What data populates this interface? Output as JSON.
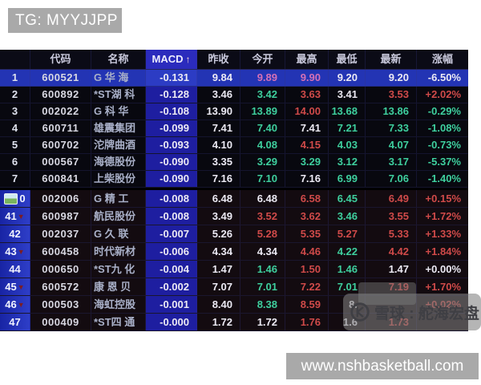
{
  "top_banner": {
    "label": "TG: MYYJJPP"
  },
  "bottom_banner": {
    "label": "www.nshbasketball.com"
  },
  "watermark": {
    "text": "雪球 : 舵海宏盘",
    "logo_icon": "xueqiu-snowball-logo"
  },
  "icons": {
    "sort_arrow": "↑",
    "down_arrow": "▼"
  },
  "colors": {
    "up_red": "#cf4a49",
    "down_green": "#3ecf9e",
    "neutral_white": "#eceaf4",
    "highlight_pink": "#d570b6",
    "row_highlight_blue": "#2334b4",
    "macd_column_blue": "#1e1ea0",
    "banner_gray": "#a9a9a9",
    "table_bg": "#08080f"
  },
  "table": {
    "columns": [
      "代码",
      "名称",
      "MACD",
      "昨收",
      "今开",
      "最高",
      "最低",
      "最新",
      "涨幅"
    ],
    "sorted_column": "MACD",
    "rows": [
      {
        "num": "1",
        "code": "600521",
        "name": "G 华 海",
        "vals": [
          "-0.131",
          "9.84",
          "9.89",
          "9.90",
          "9.20",
          "9.20",
          "-6.50%"
        ],
        "cols": [
          "w",
          "w",
          "p",
          "p",
          "w",
          "w",
          "w"
        ],
        "highlight": true,
        "section": "top",
        "arrow": false,
        "img_icon": false
      },
      {
        "num": "2",
        "code": "600892",
        "name": "*ST湖 科",
        "vals": [
          "-0.128",
          "3.46",
          "3.42",
          "3.63",
          "3.41",
          "3.53",
          "+2.02%"
        ],
        "cols": [
          "w",
          "w",
          "g",
          "r",
          "w",
          "r",
          "r"
        ],
        "highlight": false,
        "section": "top",
        "arrow": false,
        "img_icon": false
      },
      {
        "num": "3",
        "code": "002022",
        "name": "G 科 华",
        "vals": [
          "-0.108",
          "13.90",
          "13.89",
          "14.00",
          "13.68",
          "13.86",
          "-0.29%"
        ],
        "cols": [
          "w",
          "w",
          "g",
          "r",
          "g",
          "g",
          "g"
        ],
        "highlight": false,
        "section": "top",
        "arrow": false,
        "img_icon": false
      },
      {
        "num": "4",
        "code": "600711",
        "name": "雄震集团",
        "vals": [
          "-0.099",
          "7.41",
          "7.40",
          "7.41",
          "7.21",
          "7.33",
          "-1.08%"
        ],
        "cols": [
          "w",
          "w",
          "g",
          "w",
          "g",
          "g",
          "g"
        ],
        "highlight": false,
        "section": "top",
        "arrow": false,
        "img_icon": false
      },
      {
        "num": "5",
        "code": "600702",
        "name": "沱牌曲酒",
        "vals": [
          "-0.093",
          "4.10",
          "4.08",
          "4.15",
          "4.03",
          "4.07",
          "-0.73%"
        ],
        "cols": [
          "w",
          "w",
          "g",
          "r",
          "g",
          "g",
          "g"
        ],
        "highlight": false,
        "section": "top",
        "arrow": false,
        "img_icon": false
      },
      {
        "num": "6",
        "code": "000567",
        "name": "海德股份",
        "vals": [
          "-0.090",
          "3.35",
          "3.29",
          "3.29",
          "3.12",
          "3.17",
          "-5.37%"
        ],
        "cols": [
          "w",
          "w",
          "g",
          "g",
          "g",
          "g",
          "g"
        ],
        "highlight": false,
        "section": "top",
        "arrow": false,
        "img_icon": false
      },
      {
        "num": "7",
        "code": "600841",
        "name": "上柴股份",
        "vals": [
          "-0.090",
          "7.16",
          "7.10",
          "7.16",
          "6.99",
          "7.06",
          "-1.40%"
        ],
        "cols": [
          "w",
          "w",
          "g",
          "w",
          "g",
          "g",
          "g"
        ],
        "highlight": false,
        "section": "top",
        "arrow": false,
        "img_icon": false
      },
      {
        "num": "0",
        "code": "002006",
        "name": "G 精 工",
        "vals": [
          "-0.008",
          "6.48",
          "6.48",
          "6.58",
          "6.45",
          "6.49",
          "+0.15%"
        ],
        "cols": [
          "w",
          "w",
          "w",
          "r",
          "g",
          "r",
          "r"
        ],
        "highlight": false,
        "section": "bottom",
        "arrow": false,
        "img_icon": true
      },
      {
        "num": "41",
        "code": "600987",
        "name": "航民股份",
        "vals": [
          "-0.008",
          "3.49",
          "3.52",
          "3.62",
          "3.46",
          "3.55",
          "+1.72%"
        ],
        "cols": [
          "w",
          "w",
          "r",
          "r",
          "g",
          "r",
          "r"
        ],
        "highlight": false,
        "section": "bottom",
        "arrow": true,
        "img_icon": false
      },
      {
        "num": "42",
        "code": "002037",
        "name": "G 久 联",
        "vals": [
          "-0.007",
          "5.26",
          "5.28",
          "5.35",
          "5.27",
          "5.33",
          "+1.33%"
        ],
        "cols": [
          "w",
          "w",
          "r",
          "r",
          "r",
          "r",
          "r"
        ],
        "highlight": false,
        "section": "bottom",
        "arrow": false,
        "img_icon": false
      },
      {
        "num": "43",
        "code": "600458",
        "name": "时代新材",
        "vals": [
          "-0.006",
          "4.34",
          "4.34",
          "4.46",
          "4.22",
          "4.42",
          "+1.84%"
        ],
        "cols": [
          "w",
          "w",
          "w",
          "r",
          "g",
          "r",
          "r"
        ],
        "highlight": false,
        "section": "bottom",
        "arrow": true,
        "img_icon": false
      },
      {
        "num": "44",
        "code": "000650",
        "name": "*ST九 化",
        "vals": [
          "-0.004",
          "1.47",
          "1.46",
          "1.50",
          "1.46",
          "1.47",
          "+0.00%"
        ],
        "cols": [
          "w",
          "w",
          "g",
          "r",
          "g",
          "w",
          "w"
        ],
        "highlight": false,
        "section": "bottom",
        "arrow": false,
        "img_icon": false
      },
      {
        "num": "45",
        "code": "600572",
        "name": "康 恩 贝",
        "vals": [
          "-0.002",
          "7.07",
          "7.01",
          "7.22",
          "7.01",
          "7.19",
          "+1.70%"
        ],
        "cols": [
          "w",
          "w",
          "g",
          "r",
          "g",
          "r",
          "r"
        ],
        "highlight": false,
        "section": "bottom",
        "arrow": true,
        "img_icon": false
      },
      {
        "num": "46",
        "code": "000503",
        "name": "海虹控股",
        "vals": [
          "-0.001",
          "8.40",
          "8.38",
          "8.59",
          "8.",
          "",
          "+0.02%"
        ],
        "cols": [
          "w",
          "w",
          "g",
          "r",
          "w",
          "w",
          "r"
        ],
        "highlight": false,
        "section": "bottom",
        "arrow": true,
        "img_icon": false
      },
      {
        "num": "47",
        "code": "000409",
        "name": "*ST四 通",
        "vals": [
          "-0.000",
          "1.72",
          "1.72",
          "1.76",
          "1.6",
          "1.73",
          ""
        ],
        "cols": [
          "w",
          "w",
          "w",
          "r",
          "w",
          "r",
          "w"
        ],
        "highlight": false,
        "section": "bottom",
        "arrow": false,
        "img_icon": false
      }
    ]
  }
}
